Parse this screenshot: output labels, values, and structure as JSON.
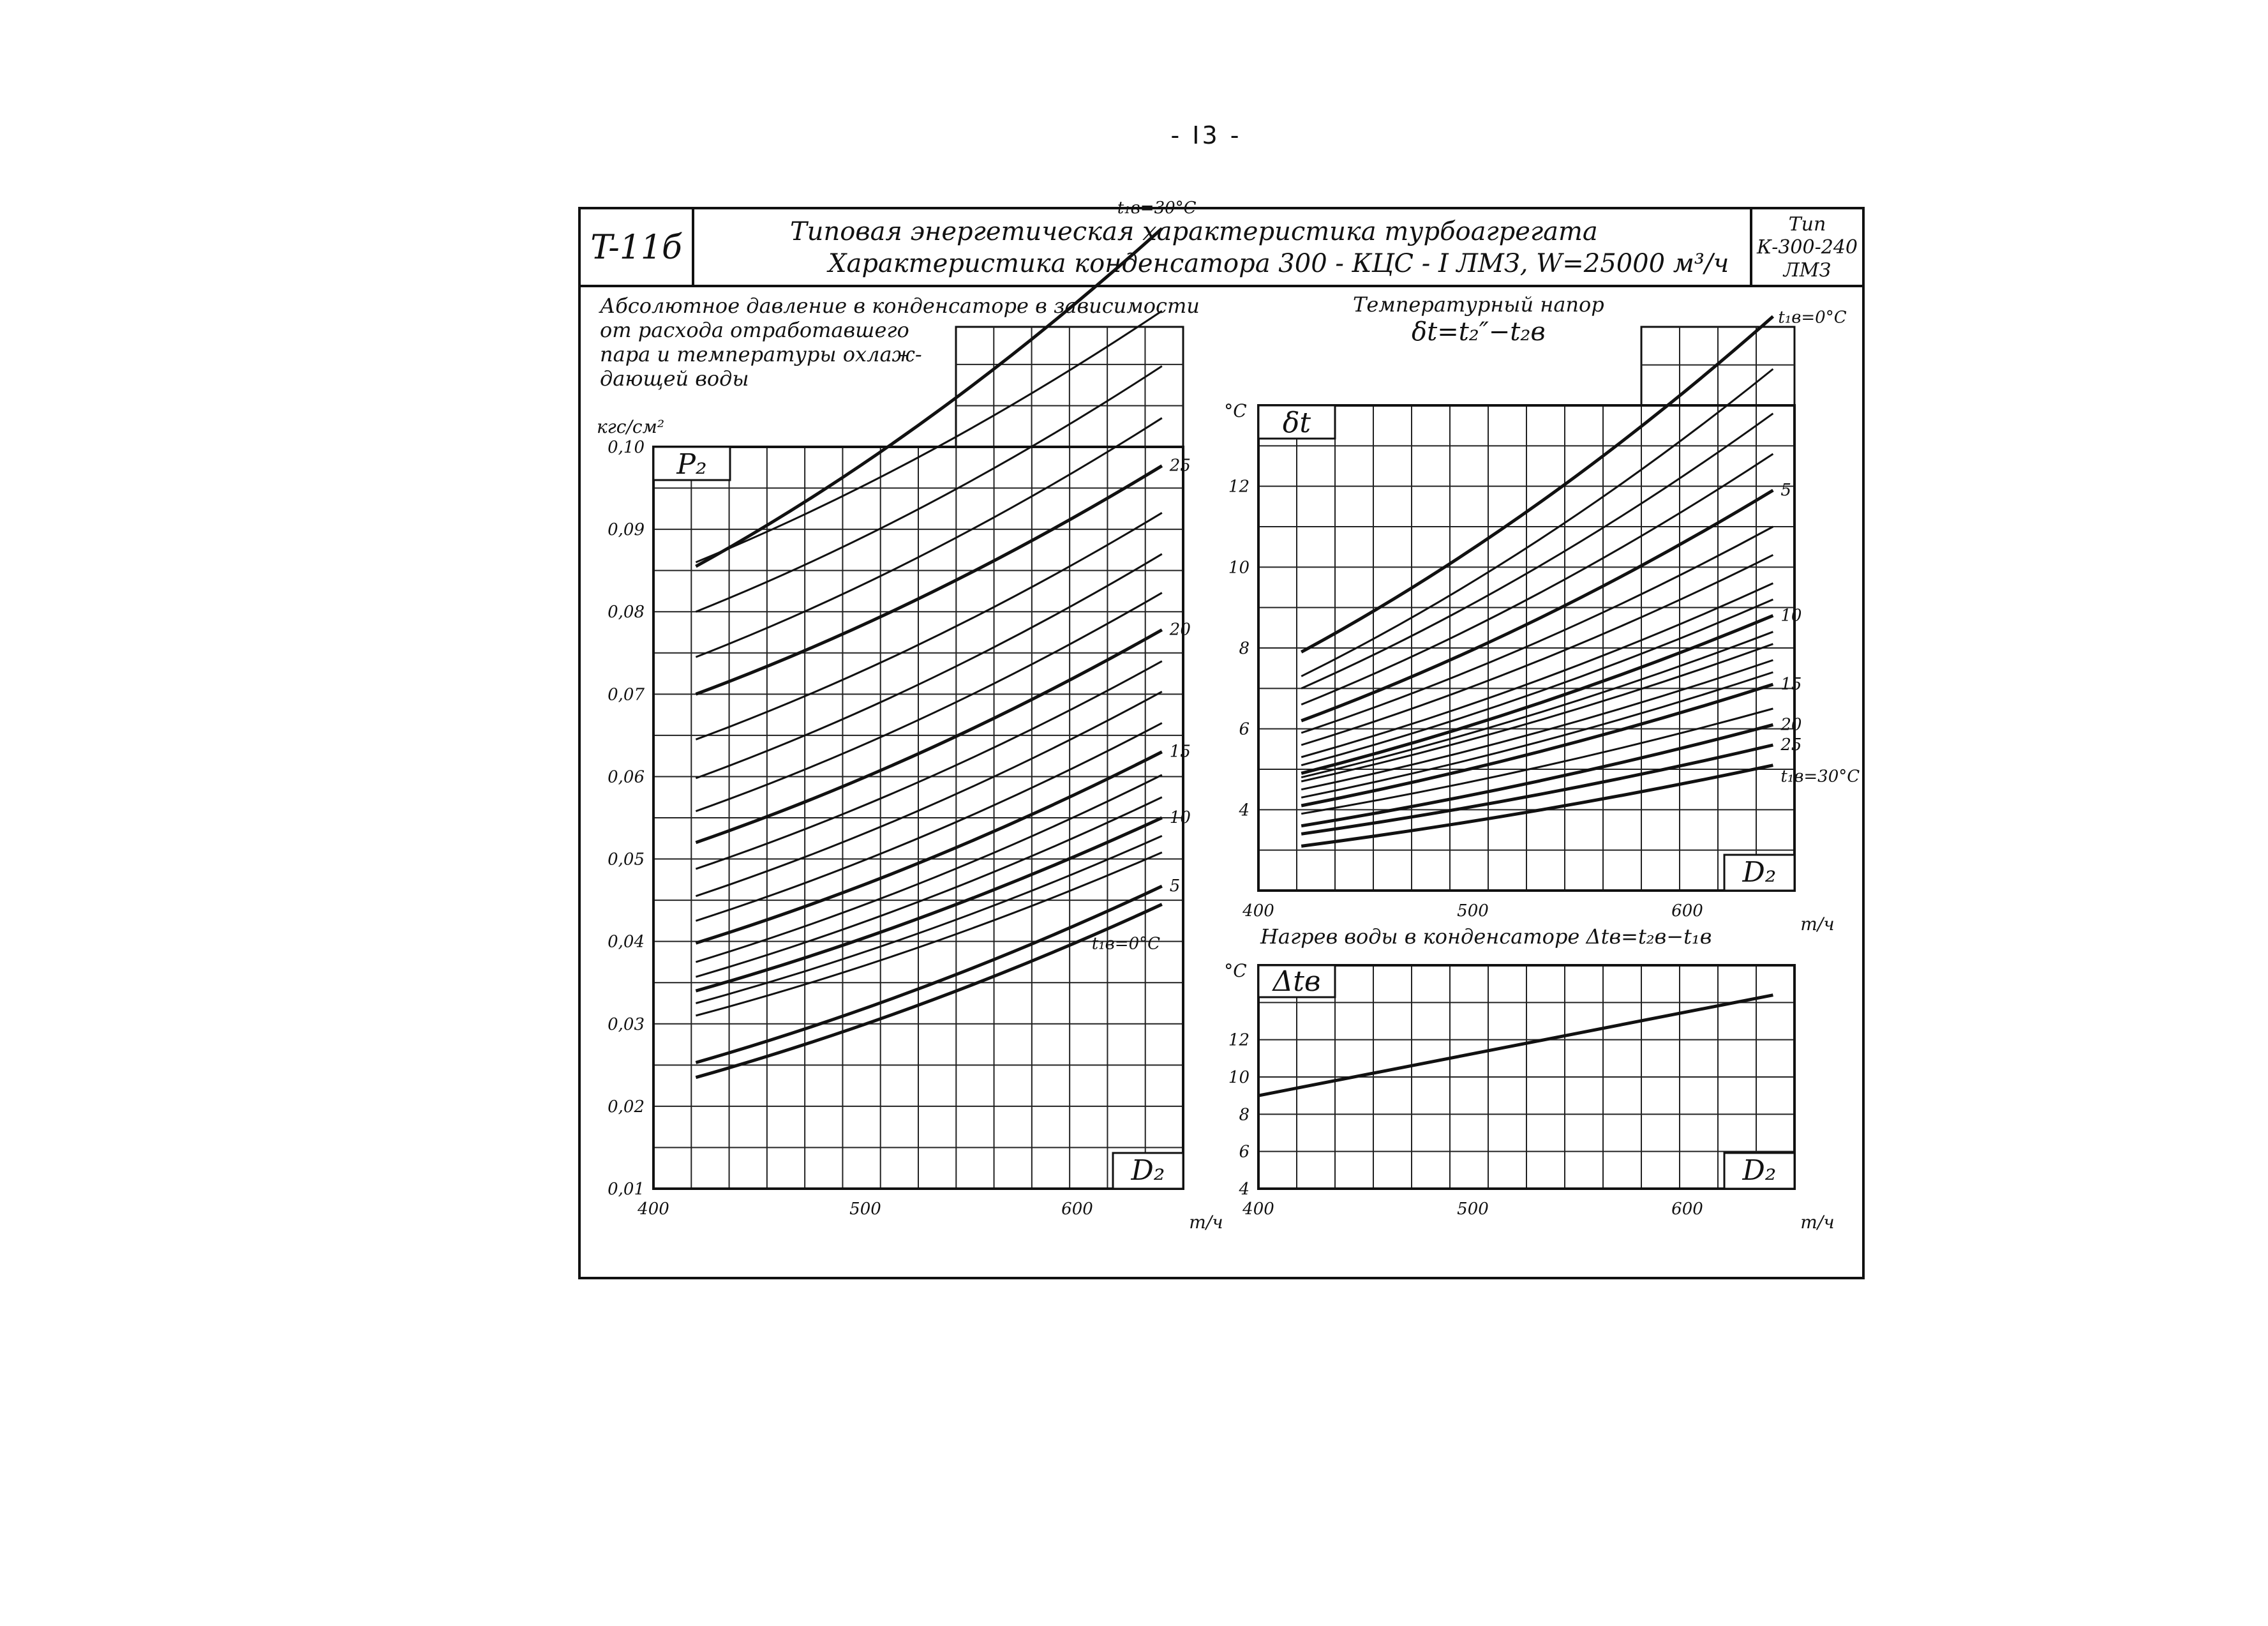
{
  "page_number": "- I3 -",
  "header": {
    "code": "T-11б",
    "title_line1": "Типовая энергетическая характеристика турбоагрегата",
    "title_line2": "Характеристика конденсатора 300 - КЦС - I ЛМЗ, W=25000 м³/ч",
    "type_label": "Тип",
    "type_line1": "К-300-240",
    "type_line2": "ЛМЗ"
  },
  "chart_data": [
    {
      "type": "line",
      "title_lines": [
        "Абсолютное давление в конденсаторе в зависимости",
        "от расхода отработавшего",
        "пара и температуры охлаж-",
        "дающей воды"
      ],
      "y_symbol": "P₂",
      "y_unit": "кгс/см²",
      "x_symbol": "D₂",
      "x_unit": "т/ч",
      "xlim": [
        400,
        650
      ],
      "ylim": [
        0.01,
        0.1
      ],
      "x_ticks": [
        "400",
        "500",
        "600"
      ],
      "y_ticks": [
        "0,01",
        "0,02",
        "0,03",
        "0,04",
        "0,05",
        "0,06",
        "0,07",
        "0,08",
        "0,09",
        "0,10"
      ],
      "grid": true,
      "x": [
        420,
        640
      ],
      "series": [
        {
          "label": "t₁в=0°C",
          "values": [
            0.0235,
            0.0445
          ]
        },
        {
          "label": "5",
          "values": [
            0.0253,
            0.0467
          ]
        },
        {
          "label": "",
          "values": [
            0.031,
            0.0508
          ]
        },
        {
          "label": "",
          "values": [
            0.0325,
            0.0528
          ]
        },
        {
          "label": "10",
          "values": [
            0.034,
            0.055
          ]
        },
        {
          "label": "",
          "values": [
            0.0357,
            0.0575
          ]
        },
        {
          "label": "",
          "values": [
            0.0375,
            0.0602
          ]
        },
        {
          "label": "15",
          "values": [
            0.0398,
            0.063
          ]
        },
        {
          "label": "",
          "values": [
            0.0425,
            0.0665
          ]
        },
        {
          "label": "",
          "values": [
            0.0455,
            0.0703
          ]
        },
        {
          "label": "",
          "values": [
            0.0488,
            0.074
          ]
        },
        {
          "label": "20",
          "values": [
            0.052,
            0.0778
          ]
        },
        {
          "label": "",
          "values": [
            0.0558,
            0.0823
          ]
        },
        {
          "label": "",
          "values": [
            0.0598,
            0.087
          ]
        },
        {
          "label": "",
          "values": [
            0.0645,
            0.092
          ]
        },
        {
          "label": "25",
          "values": [
            0.07,
            0.0977
          ]
        },
        {
          "label": "",
          "values": [
            0.0745,
            0.1035
          ]
        },
        {
          "label": "",
          "values": [
            0.08,
            0.1098
          ]
        },
        {
          "label": "",
          "values": [
            0.086,
            0.1165
          ]
        },
        {
          "label": "t₁в=30°C",
          "values": [
            0.0855,
            0.1265
          ]
        }
      ]
    },
    {
      "type": "line",
      "title_lines": [
        "Температурный напор",
        "δt=t₂″−t₂в"
      ],
      "y_symbol": "δt",
      "y_unit": "°C",
      "x_symbol": "D₂",
      "x_unit": "т/ч",
      "xlim": [
        400,
        650
      ],
      "ylim": [
        2,
        14
      ],
      "x_ticks": [
        "400",
        "500",
        "600"
      ],
      "y_ticks": [
        "4",
        "6",
        "8",
        "10",
        "12"
      ],
      "grid": true,
      "x": [
        420,
        640
      ],
      "series": [
        {
          "label": "t₁в=0°C",
          "values": [
            7.9,
            16.2
          ]
        },
        {
          "label": "",
          "values": [
            7.3,
            14.9
          ]
        },
        {
          "label": "",
          "values": [
            7.0,
            13.8
          ]
        },
        {
          "label": "",
          "values": [
            6.6,
            12.8
          ]
        },
        {
          "label": "5",
          "values": [
            6.2,
            11.9
          ]
        },
        {
          "label": "",
          "values": [
            5.9,
            11.0
          ]
        },
        {
          "label": "",
          "values": [
            5.6,
            10.3
          ]
        },
        {
          "label": "",
          "values": [
            5.3,
            9.6
          ]
        },
        {
          "label": "",
          "values": [
            5.1,
            9.2
          ]
        },
        {
          "label": "10",
          "values": [
            4.9,
            8.8
          ]
        },
        {
          "label": "",
          "values": [
            4.8,
            8.4
          ]
        },
        {
          "label": "",
          "values": [
            4.7,
            8.1
          ]
        },
        {
          "label": "",
          "values": [
            4.5,
            7.7
          ]
        },
        {
          "label": "",
          "values": [
            4.3,
            7.4
          ]
        },
        {
          "label": "15",
          "values": [
            4.1,
            7.1
          ]
        },
        {
          "label": "",
          "values": [
            3.9,
            6.5
          ]
        },
        {
          "label": "20",
          "values": [
            3.6,
            6.1
          ]
        },
        {
          "label": "25",
          "values": [
            3.4,
            5.6
          ]
        },
        {
          "label": "t₁в=30°C",
          "values": [
            3.1,
            5.1
          ]
        }
      ]
    },
    {
      "type": "line",
      "title_lines": [
        "Нагрев воды в конденсаторе Δtв=t₂в−t₁в"
      ],
      "y_symbol": "Δtв",
      "y_unit": "°C",
      "x_symbol": "D₂",
      "x_unit": "т/ч",
      "xlim": [
        400,
        650
      ],
      "ylim": [
        4,
        16
      ],
      "x_ticks": [
        "400",
        "500",
        "600"
      ],
      "y_ticks": [
        "4",
        "6",
        "8",
        "10",
        "12"
      ],
      "grid": true,
      "x": [
        400,
        640
      ],
      "series": [
        {
          "label": "",
          "values": [
            9.0,
            14.4
          ]
        }
      ]
    }
  ]
}
